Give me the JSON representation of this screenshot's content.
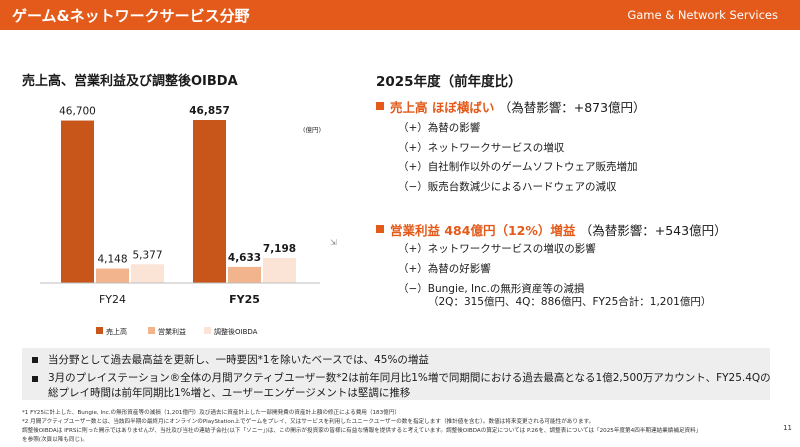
{
  "header": {
    "title": "ゲーム&ネットワークサービス分野",
    "subtitle": "Game & Network Services"
  },
  "chart_title": "売上高、営業利益及び調整後OIBDA",
  "chart_data": {
    "type": "bar",
    "unit_label": "(億円)",
    "categories": [
      "FY24",
      "FY25"
    ],
    "series": [
      {
        "name": "売上高",
        "values": [
          46700,
          46857
        ],
        "labels": [
          "46,700",
          "46,857"
        ],
        "color": "#C8561B"
      },
      {
        "name": "営業利益",
        "values": [
          4148,
          4633
        ],
        "labels": [
          "4,148",
          "4,633"
        ],
        "color": "#F1B48C"
      },
      {
        "name": "調整後OIBDA",
        "values": [
          5377,
          7198
        ],
        "labels": [
          "5,377",
          "7,198"
        ],
        "color": "#FBE3D5"
      }
    ],
    "bold_category": "FY25"
  },
  "right": {
    "title": "2025年度（前年度比）",
    "sales": {
      "highlight": "売上高  ほぼ横ばい",
      "fx": "（為替影響：+873億円）",
      "items": [
        "（+）為替の影響",
        "（+）ネットワークサービスの増収",
        "（+）自社制作以外のゲームソフトウェア販売増加",
        "（−）販売台数減少によるハードウェアの減収"
      ]
    },
    "profit": {
      "highlight": "営業利益  484億円（12%）増益",
      "fx": "（為替影響：+543億円）",
      "items": [
        "（+）ネットワークサービスの増収の影響",
        "（+）為替の好影響",
        "（−）Bungie, Inc.の無形資産等の減損",
        "（2Q：315億円、4Q：886億円、FY25合計：1,201億円）"
      ]
    }
  },
  "notes": [
    "当分野として過去最高益を更新し、一時要因*1を除いたベースでは、45%の増益",
    "3月のプレイステーション®全体の月間アクティブユーザー数*2は前年同月比1%増で同期間における過去最高となる1億2,500万アカウント、FY25.4Qの",
    "総プレイ時間は前年同期比1%増と、ユーザーエンゲージメントは堅調に推移"
  ],
  "footnotes": [
    "*1  FY25に計上した、Bungie, Inc.の無形資産等の減損（1,201億円）及び過去に資産計上した一部開発費の資産計上額の修正による費用（183億円）",
    "*2  月間アクティブユーザー数とは、当該四半期の最終月にオンラインのPlayStation上でゲームをプレイ、又はサービスを利用したユニークユーザーの数を指定します（推計値を含む）。数値は将来変更される可能性があります。",
    "調整後OIBDAは IFRSに則った開示ではありませんが、当社及び当社の連結子会社(以下「ソニー」)は、この開示が投資家の皆様に有益な情報を提供すると考えています。調整後OIBDAの算定については P.26を、調整表については「2025年度第4四半期連結業績補足資料」",
    "を参照(次頁以降も同じ)。"
  ],
  "page_number": "11"
}
